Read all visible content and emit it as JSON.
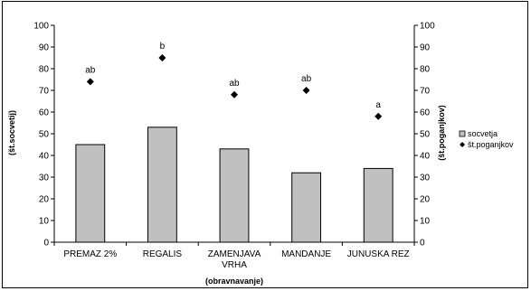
{
  "chart_data": {
    "type": "bar",
    "categories": [
      "PREMAZ 2%",
      "REGALIS",
      "ZAMENJAVA VRHA",
      "MANDANJE",
      "JUNUSKA REZ"
    ],
    "category_lines": [
      [
        "PREMAZ 2%"
      ],
      [
        "REGALIS"
      ],
      [
        "ZAMENJAVA",
        "VRHA"
      ],
      [
        "MANDANJE"
      ],
      [
        "JUNUSKA REZ"
      ]
    ],
    "series": [
      {
        "name": "socvetja",
        "type": "bar",
        "axis": "left",
        "values": [
          45,
          53,
          43,
          32,
          34
        ],
        "color": "#c0c0c0"
      },
      {
        "name": "št.poganjkov",
        "type": "scatter",
        "marker": "diamond",
        "axis": "right",
        "values": [
          74,
          85,
          68,
          70,
          58
        ],
        "color": "#000000"
      }
    ],
    "point_labels": [
      "ab",
      "b",
      "ab",
      "ab",
      "a"
    ],
    "xlabel": "(obravnavanje)",
    "ylabel": "(št.socvetij)",
    "y2label": "(št.poganjkov)",
    "ylim": [
      0,
      100
    ],
    "y2lim": [
      0,
      100
    ],
    "yticks": [
      0,
      10,
      20,
      30,
      40,
      50,
      60,
      70,
      80,
      90,
      100
    ],
    "grid": false,
    "legend_position": "right"
  }
}
